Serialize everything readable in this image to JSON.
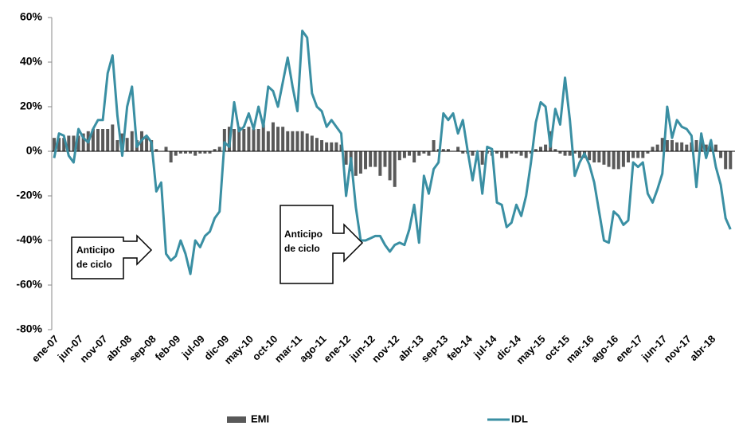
{
  "chart_data": {
    "type": "bar-line",
    "categories": [
      "ene-07",
      null,
      null,
      null,
      null,
      "jun-07",
      null,
      null,
      null,
      null,
      "nov-07",
      null,
      null,
      null,
      null,
      "abr-08",
      null,
      null,
      null,
      null,
      "sep-08",
      null,
      null,
      null,
      null,
      "feb-09",
      null,
      null,
      null,
      null,
      "jul-09",
      null,
      null,
      null,
      null,
      "dic-09",
      null,
      null,
      null,
      null,
      "may-10",
      null,
      null,
      null,
      null,
      "oct-10",
      null,
      null,
      null,
      null,
      "mar-11",
      null,
      null,
      null,
      null,
      "ago-11",
      null,
      null,
      null,
      null,
      "ene-12",
      null,
      null,
      null,
      null,
      "jun-12",
      null,
      null,
      null,
      null,
      "nov-12",
      null,
      null,
      null,
      null,
      "abr-13",
      null,
      null,
      null,
      null,
      "sep-13",
      null,
      null,
      null,
      null,
      "feb-14",
      null,
      null,
      null,
      null,
      "jul-14",
      null,
      null,
      null,
      null,
      "dic-14",
      null,
      null,
      null,
      null,
      "may-15",
      null,
      null,
      null,
      null,
      "oct-15",
      null,
      null,
      null,
      null,
      "mar-16",
      null,
      null,
      null,
      null,
      "ago-16",
      null,
      null,
      null,
      null,
      "ene-17",
      null,
      null,
      null,
      null,
      "jun-17",
      null,
      null,
      null,
      null,
      "nov-17",
      null,
      null,
      null,
      null,
      "abr-18",
      null,
      null,
      null,
      null
    ],
    "series": [
      {
        "name": "EMI",
        "type": "bar",
        "color": "#595959",
        "values": [
          6,
          6,
          6,
          7,
          7,
          7,
          8,
          9,
          10,
          10,
          10,
          10,
          12,
          5,
          8,
          6,
          9,
          5,
          9,
          6,
          5,
          1,
          0,
          2,
          -5,
          -2,
          -1,
          -1,
          -1,
          -2,
          -1,
          -1,
          -1,
          1,
          2,
          10,
          11,
          10,
          11,
          10,
          11,
          10,
          10,
          12,
          9,
          13,
          11,
          11,
          9,
          9,
          9,
          9,
          8,
          7,
          6,
          5,
          4,
          4,
          4,
          3,
          -6,
          -9,
          -11,
          -10,
          -8,
          -7,
          -7,
          -11,
          -7,
          -13,
          -16,
          -4,
          -3,
          -2,
          -5,
          -2,
          -1,
          -2,
          5,
          1,
          1,
          1,
          0,
          2,
          -1,
          -1,
          -2,
          0,
          -6,
          -1,
          -2,
          -1,
          -3,
          -3,
          -1,
          -1,
          -2,
          -3,
          -1,
          1,
          2,
          3,
          9,
          1,
          -1,
          -2,
          -2,
          -1,
          -3,
          -3,
          -4,
          -5,
          -5,
          -6,
          -7,
          -8,
          -8,
          -7,
          -5,
          -3,
          -3,
          -3,
          -1,
          2,
          3,
          6,
          5,
          5,
          4,
          4,
          3,
          4,
          5,
          5,
          3,
          4,
          3,
          -3,
          -8,
          -8
        ]
      },
      {
        "name": "IDL",
        "type": "line",
        "color": "#3a8fa3",
        "values": [
          -3,
          8,
          7,
          -2,
          -5,
          10,
          6,
          4,
          10,
          14,
          14,
          35,
          43,
          16,
          -2,
          20,
          29,
          2,
          5,
          7,
          4,
          -18,
          -14,
          -46,
          -49,
          -47,
          -40,
          -46,
          -55,
          -40,
          -43,
          -38,
          -36,
          -30,
          -27,
          4,
          2,
          22,
          9,
          11,
          17,
          10,
          20,
          11,
          29,
          27,
          20,
          31,
          42,
          29,
          18,
          54,
          51,
          26,
          20,
          18,
          11,
          14,
          11,
          8,
          -20,
          -3,
          -25,
          -40,
          -40,
          -39,
          -38,
          -38,
          -42,
          -45,
          -42,
          -41,
          -42,
          -35,
          -24,
          -41,
          -11,
          -19,
          -8,
          -5,
          17,
          14,
          17,
          8,
          14,
          0,
          -13,
          0,
          -19,
          2,
          1,
          -23,
          -24,
          -34,
          -32,
          -24,
          -29,
          -20,
          -5,
          13,
          22,
          20,
          2,
          19,
          12,
          33,
          14,
          -11,
          -5,
          -1,
          -6,
          -14,
          -27,
          -40,
          -41,
          -27,
          -29,
          -33,
          -31,
          -5,
          -7,
          -5,
          -19,
          -23,
          -17,
          -10,
          20,
          6,
          14,
          11,
          10,
          7,
          -16,
          8,
          -3,
          5,
          -7,
          -15,
          -30,
          -35
        ]
      }
    ],
    "ylim": [
      -80,
      60
    ],
    "yticks": [
      {
        "value": -80,
        "label": "-80%"
      },
      {
        "value": -60,
        "label": "-60%"
      },
      {
        "value": -40,
        "label": "-40%"
      },
      {
        "value": -20,
        "label": "-20%"
      },
      {
        "value": 0,
        "label": "0%"
      },
      {
        "value": 20,
        "label": "20%"
      },
      {
        "value": 40,
        "label": "40%"
      },
      {
        "value": 60,
        "label": "60%"
      }
    ],
    "annotations": [
      {
        "lines": [
          "Anticipo",
          "de ciclo"
        ]
      },
      {
        "lines": [
          "Anticipo",
          "de ciclo"
        ]
      }
    ],
    "legend": "bottom"
  }
}
